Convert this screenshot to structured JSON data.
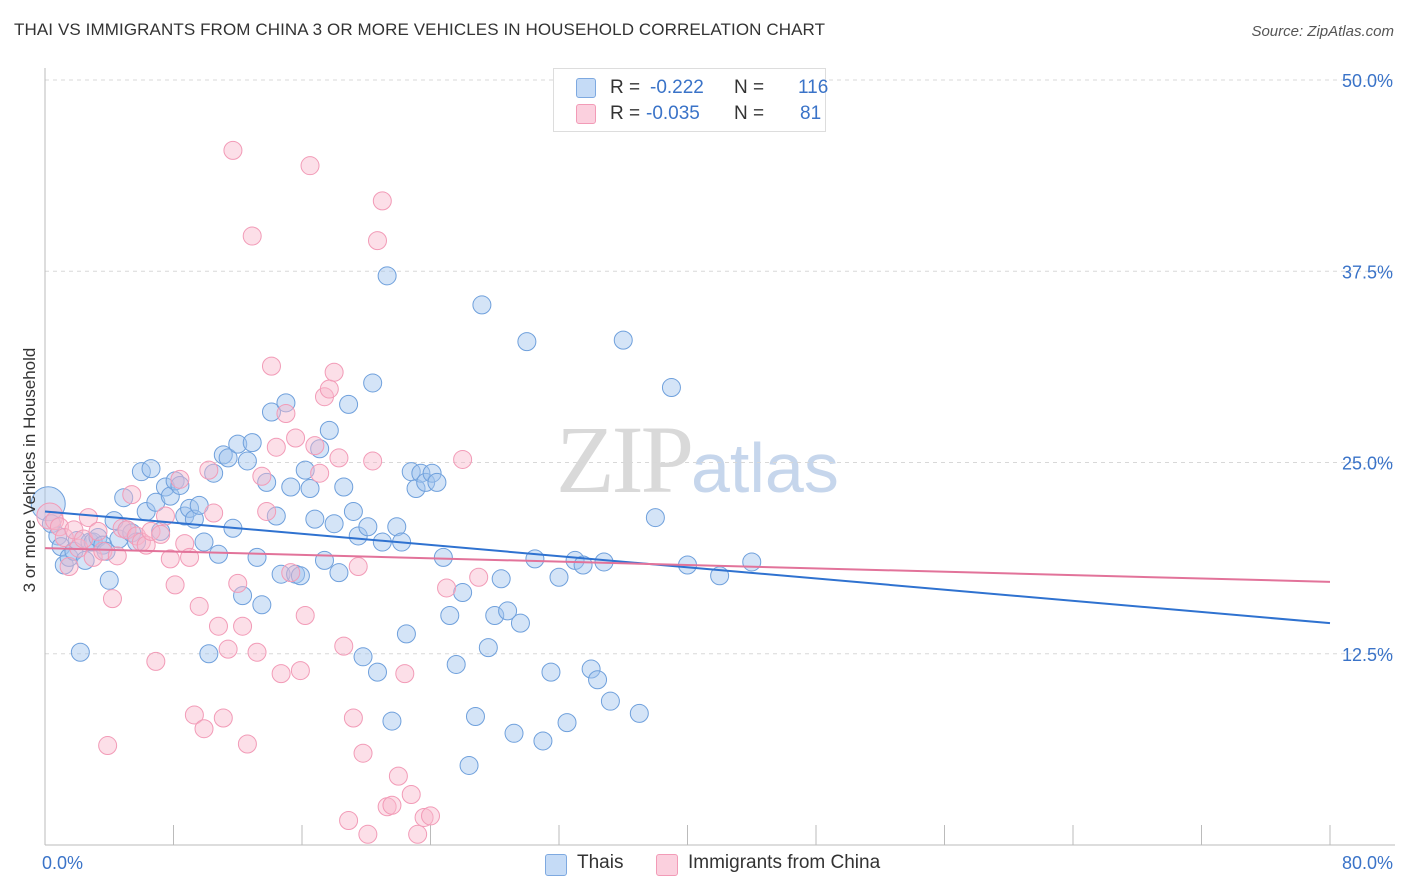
{
  "title": "THAI VS IMMIGRANTS FROM CHINA 3 OR MORE VEHICLES IN HOUSEHOLD CORRELATION CHART",
  "source": "Source: ZipAtlas.com",
  "watermark": {
    "zip": "ZIP",
    "atlas": "atlas"
  },
  "legend": {
    "rows": [
      {
        "r_label": "R =",
        "r_value": "-0.222",
        "n_label": "N =",
        "n_value": "116",
        "color": "#a8c8f0"
      },
      {
        "r_label": "R =",
        "r_value": "-0.035",
        "n_label": "N =",
        "n_value": "81",
        "color": "#f7b8cc"
      }
    ]
  },
  "chart_data": {
    "type": "scatter",
    "title": "THAI VS IMMIGRANTS FROM CHINA 3 OR MORE VEHICLES IN HOUSEHOLD CORRELATION CHART",
    "xlabel": "",
    "ylabel": "3 or more Vehicles in Household",
    "xlim": [
      0,
      80
    ],
    "ylim": [
      0,
      50
    ],
    "x_tick_labels": [
      "0.0%",
      "80.0%"
    ],
    "y_tick_values": [
      12.5,
      25.0,
      37.5,
      50.0
    ],
    "y_tick_labels": [
      "12.5%",
      "25.0%",
      "37.5%",
      "50.0%"
    ],
    "grid": "horizontal dashed",
    "legend_position": "top-center",
    "series": [
      {
        "name": "Thais",
        "color": "#6fa0dc",
        "trend": {
          "x": [
            0,
            80
          ],
          "y": [
            21.8,
            14.5
          ]
        },
        "points": [
          [
            0.2,
            22.3
          ],
          [
            0.4,
            21.0
          ],
          [
            0.8,
            20.2
          ],
          [
            1.0,
            19.5
          ],
          [
            1.2,
            18.3
          ],
          [
            1.5,
            18.8
          ],
          [
            1.8,
            19.2
          ],
          [
            2.0,
            19.9
          ],
          [
            2.2,
            12.6
          ],
          [
            2.5,
            18.6
          ],
          [
            2.8,
            19.8
          ],
          [
            3.0,
            19.8
          ],
          [
            3.3,
            20.1
          ],
          [
            3.6,
            19.6
          ],
          [
            3.8,
            19.2
          ],
          [
            4.0,
            17.3
          ],
          [
            4.3,
            21.2
          ],
          [
            4.6,
            20.0
          ],
          [
            4.9,
            22.7
          ],
          [
            5.1,
            20.6
          ],
          [
            5.4,
            20.4
          ],
          [
            5.7,
            19.8
          ],
          [
            6.0,
            24.4
          ],
          [
            6.3,
            21.8
          ],
          [
            6.6,
            24.6
          ],
          [
            6.9,
            22.4
          ],
          [
            7.2,
            20.5
          ],
          [
            7.5,
            23.4
          ],
          [
            7.8,
            22.8
          ],
          [
            8.1,
            23.8
          ],
          [
            8.4,
            23.5
          ],
          [
            8.7,
            21.5
          ],
          [
            9.0,
            22.0
          ],
          [
            9.3,
            21.3
          ],
          [
            9.6,
            22.2
          ],
          [
            9.9,
            19.8
          ],
          [
            10.2,
            12.5
          ],
          [
            10.5,
            24.3
          ],
          [
            10.8,
            19.0
          ],
          [
            11.1,
            25.5
          ],
          [
            11.4,
            25.3
          ],
          [
            11.7,
            20.7
          ],
          [
            12.0,
            26.2
          ],
          [
            12.3,
            16.3
          ],
          [
            12.6,
            25.1
          ],
          [
            12.9,
            26.3
          ],
          [
            13.2,
            18.8
          ],
          [
            13.5,
            15.7
          ],
          [
            13.8,
            23.7
          ],
          [
            14.1,
            28.3
          ],
          [
            14.4,
            21.5
          ],
          [
            14.7,
            17.7
          ],
          [
            15.0,
            28.9
          ],
          [
            15.3,
            23.4
          ],
          [
            15.6,
            17.7
          ],
          [
            15.9,
            17.6
          ],
          [
            16.2,
            24.5
          ],
          [
            16.5,
            23.3
          ],
          [
            16.8,
            21.3
          ],
          [
            17.1,
            25.9
          ],
          [
            17.4,
            18.6
          ],
          [
            17.7,
            27.1
          ],
          [
            18.0,
            21.0
          ],
          [
            18.3,
            17.8
          ],
          [
            18.6,
            23.4
          ],
          [
            18.9,
            28.8
          ],
          [
            19.2,
            21.8
          ],
          [
            19.5,
            20.2
          ],
          [
            19.8,
            12.3
          ],
          [
            20.1,
            20.8
          ],
          [
            20.4,
            30.2
          ],
          [
            20.7,
            11.3
          ],
          [
            21.0,
            19.8
          ],
          [
            21.3,
            37.2
          ],
          [
            21.6,
            8.1
          ],
          [
            21.9,
            20.8
          ],
          [
            22.2,
            19.8
          ],
          [
            22.5,
            13.8
          ],
          [
            22.8,
            24.4
          ],
          [
            23.1,
            23.3
          ],
          [
            23.4,
            24.3
          ],
          [
            23.7,
            23.7
          ],
          [
            24.1,
            24.3
          ],
          [
            24.4,
            23.7
          ],
          [
            24.8,
            18.8
          ],
          [
            25.2,
            15.0
          ],
          [
            25.6,
            11.8
          ],
          [
            26.0,
            16.5
          ],
          [
            26.4,
            5.2
          ],
          [
            26.8,
            8.4
          ],
          [
            27.2,
            35.3
          ],
          [
            27.6,
            12.9
          ],
          [
            28.0,
            15.0
          ],
          [
            28.4,
            17.4
          ],
          [
            28.8,
            15.3
          ],
          [
            29.2,
            7.3
          ],
          [
            29.6,
            14.5
          ],
          [
            30.0,
            32.9
          ],
          [
            30.5,
            18.7
          ],
          [
            31.0,
            6.8
          ],
          [
            31.5,
            11.3
          ],
          [
            32.0,
            17.5
          ],
          [
            32.5,
            8.0
          ],
          [
            33.0,
            18.6
          ],
          [
            33.5,
            18.3
          ],
          [
            34.0,
            11.5
          ],
          [
            34.4,
            10.8
          ],
          [
            34.8,
            18.5
          ],
          [
            35.2,
            9.4
          ],
          [
            36.0,
            33.0
          ],
          [
            37.0,
            8.6
          ],
          [
            38.0,
            21.4
          ],
          [
            39.0,
            29.9
          ],
          [
            40.0,
            18.3
          ],
          [
            42.0,
            17.6
          ],
          [
            44.0,
            18.5
          ]
        ]
      },
      {
        "name": "Immigrants from China",
        "color": "#f29bb7",
        "trend": {
          "x": [
            0,
            80
          ],
          "y": [
            19.4,
            17.2
          ]
        },
        "points": [
          [
            0.3,
            21.5
          ],
          [
            0.6,
            21.2
          ],
          [
            0.9,
            20.8
          ],
          [
            1.2,
            20.1
          ],
          [
            1.5,
            18.2
          ],
          [
            1.8,
            20.6
          ],
          [
            2.1,
            19.4
          ],
          [
            2.4,
            20.0
          ],
          [
            2.7,
            21.4
          ],
          [
            3.0,
            18.8
          ],
          [
            3.3,
            20.5
          ],
          [
            3.6,
            19.2
          ],
          [
            3.9,
            6.5
          ],
          [
            4.2,
            16.1
          ],
          [
            4.5,
            18.9
          ],
          [
            4.8,
            20.7
          ],
          [
            5.1,
            20.6
          ],
          [
            5.4,
            22.9
          ],
          [
            5.7,
            20.2
          ],
          [
            6.0,
            19.8
          ],
          [
            6.3,
            19.6
          ],
          [
            6.6,
            20.5
          ],
          [
            6.9,
            12.0
          ],
          [
            7.2,
            20.3
          ],
          [
            7.5,
            21.5
          ],
          [
            7.8,
            18.7
          ],
          [
            8.1,
            17.0
          ],
          [
            8.4,
            23.9
          ],
          [
            8.7,
            19.7
          ],
          [
            9.0,
            18.8
          ],
          [
            9.3,
            8.5
          ],
          [
            9.6,
            15.6
          ],
          [
            9.9,
            7.6
          ],
          [
            10.2,
            24.5
          ],
          [
            10.5,
            21.7
          ],
          [
            10.8,
            14.3
          ],
          [
            11.1,
            8.3
          ],
          [
            11.4,
            12.8
          ],
          [
            11.7,
            45.4
          ],
          [
            12.0,
            17.1
          ],
          [
            12.3,
            14.3
          ],
          [
            12.6,
            6.6
          ],
          [
            12.9,
            39.8
          ],
          [
            13.2,
            12.6
          ],
          [
            13.5,
            24.1
          ],
          [
            13.8,
            21.8
          ],
          [
            14.1,
            31.3
          ],
          [
            14.4,
            26.0
          ],
          [
            14.7,
            11.2
          ],
          [
            15.0,
            28.2
          ],
          [
            15.3,
            17.8
          ],
          [
            15.6,
            26.6
          ],
          [
            15.9,
            11.4
          ],
          [
            16.2,
            15.0
          ],
          [
            16.5,
            44.4
          ],
          [
            16.8,
            26.1
          ],
          [
            17.1,
            24.3
          ],
          [
            17.4,
            29.3
          ],
          [
            17.7,
            29.8
          ],
          [
            18.0,
            30.9
          ],
          [
            18.3,
            25.3
          ],
          [
            18.6,
            13.0
          ],
          [
            18.9,
            1.6
          ],
          [
            19.2,
            8.3
          ],
          [
            19.5,
            18.2
          ],
          [
            19.8,
            6.0
          ],
          [
            20.1,
            0.7
          ],
          [
            20.4,
            25.1
          ],
          [
            20.7,
            39.5
          ],
          [
            21.0,
            42.1
          ],
          [
            21.3,
            2.5
          ],
          [
            21.6,
            2.6
          ],
          [
            22.0,
            4.5
          ],
          [
            22.4,
            11.2
          ],
          [
            22.8,
            3.3
          ],
          [
            23.2,
            0.7
          ],
          [
            23.6,
            1.8
          ],
          [
            24.0,
            1.9
          ],
          [
            25.0,
            16.8
          ],
          [
            26.0,
            25.2
          ],
          [
            27.0,
            17.5
          ]
        ]
      }
    ]
  }
}
